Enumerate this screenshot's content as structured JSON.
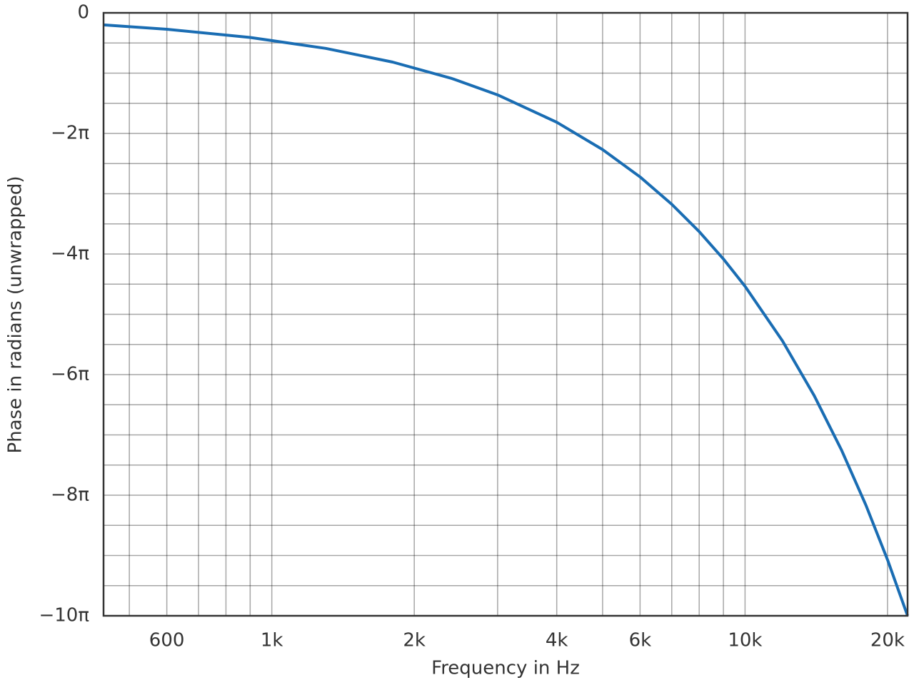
{
  "chart_data": {
    "type": "line",
    "xlabel": "Frequency in Hz",
    "ylabel": "Phase in radians (unwrapped)",
    "x": [
      441,
      600,
      900,
      1300,
      1800,
      2400,
      3000,
      4000,
      5000,
      6000,
      7000,
      8000,
      9000,
      10000,
      12000,
      14000,
      16000,
      18000,
      20000,
      22050
    ],
    "values": [
      -0.628,
      -0.855,
      -1.282,
      -1.852,
      -2.565,
      -3.419,
      -4.274,
      -5.699,
      -7.124,
      -8.549,
      -9.973,
      -11.398,
      -12.823,
      -14.248,
      -17.097,
      -19.947,
      -22.796,
      -25.646,
      -28.496,
      -31.416
    ],
    "color": "#1a6db3",
    "xscale": "log",
    "xlim": [
      441,
      22050
    ],
    "ylim": [
      -31.4159,
      0
    ],
    "xticks": [
      600,
      {
        "value": 1000,
        "label": "1k"
      },
      {
        "value": 2000,
        "label": "2k"
      },
      {
        "value": 4000,
        "label": "4k"
      },
      {
        "value": 6000,
        "label": "6k"
      },
      {
        "value": 10000,
        "label": "10k"
      },
      {
        "value": 20000,
        "label": "20k"
      }
    ],
    "xminor": [
      500,
      700,
      800,
      900,
      3000,
      5000,
      7000,
      8000,
      9000
    ],
    "yticks": [
      0,
      {
        "value": -6.2832,
        "label": "−2π"
      },
      {
        "value": -12.5664,
        "label": "−4π"
      },
      {
        "value": -18.8496,
        "label": "−6π"
      },
      {
        "value": -25.1327,
        "label": "−8π"
      },
      {
        "value": -31.4159,
        "label": "−10π"
      }
    ],
    "yminor": [
      -1.5708,
      -3.1416,
      -4.7124,
      -7.854,
      -9.4248,
      -10.9956,
      -14.1372,
      -15.708,
      -17.2788,
      -20.4204,
      -21.9911,
      -23.5619,
      -26.7035,
      -28.2743,
      -29.8451
    ],
    "grid": true
  }
}
